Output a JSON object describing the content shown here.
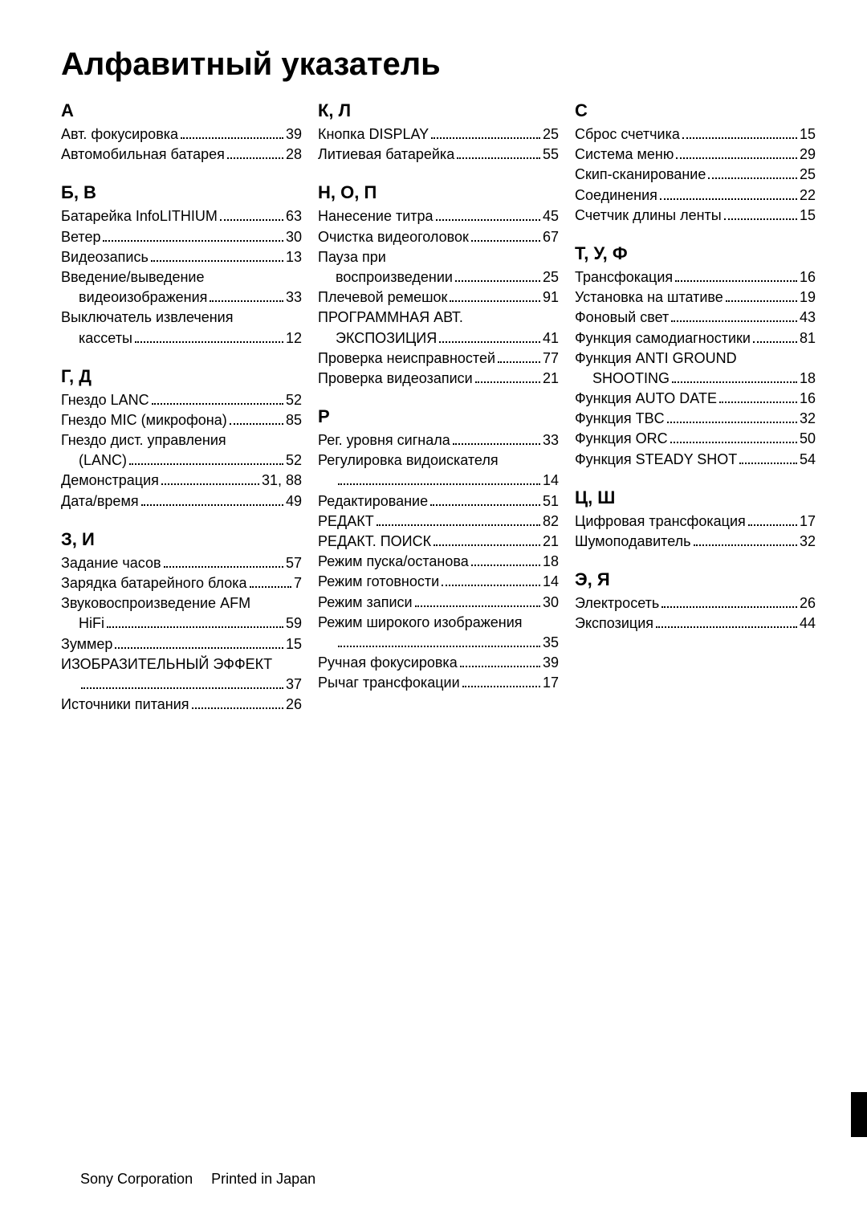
{
  "title": "Алфавитный указатель",
  "footer": {
    "corp": "Sony Corporation",
    "printed": "Printed in Japan"
  },
  "columns": [
    {
      "sections": [
        {
          "heading": "А",
          "entries": [
            {
              "label": "Авт. фокусировка",
              "page": "39"
            },
            {
              "label": "Автомобильная батарея",
              "page": "28"
            }
          ]
        },
        {
          "heading": "Б, В",
          "entries": [
            {
              "label": "Батарейка InfoLITHIUM",
              "page": "63"
            },
            {
              "label": "Ветер",
              "page": "30"
            },
            {
              "label": "Видеозапись",
              "page": "13"
            },
            {
              "label": "Введение/выведение",
              "cont": "видеоизображения",
              "page": "33"
            },
            {
              "label": "Выключатель извлечения",
              "cont": "кассеты",
              "page": "12"
            }
          ]
        },
        {
          "heading": "Г, Д",
          "entries": [
            {
              "label": "Гнездо LANC",
              "page": "52"
            },
            {
              "label": "Гнездо MIC (микрофона)",
              "page": "85"
            },
            {
              "label": "Гнездо дист. управления",
              "cont": "(LANC)",
              "page": "52"
            },
            {
              "label": "Демонстрация",
              "page": "31, 88"
            },
            {
              "label": "Дата/время",
              "page": "49"
            }
          ]
        },
        {
          "heading": "З, И",
          "entries": [
            {
              "label": "Задание часов",
              "page": "57"
            },
            {
              "label": "Зарядка батарейного блока",
              "page": "7"
            },
            {
              "label": "Звуковоспроизведение AFM",
              "cont": "HiFi",
              "page": "59"
            },
            {
              "label": "Зуммер",
              "page": "15"
            },
            {
              "label": "ИЗОБРАЗИТЕЛЬНЫЙ ЭФФЕКТ",
              "cont": "",
              "page": "37"
            },
            {
              "label": "Источники питания",
              "page": "26"
            }
          ]
        }
      ]
    },
    {
      "sections": [
        {
          "heading": "К, Л",
          "entries": [
            {
              "label": "Кнопка DISPLAY",
              "page": "25"
            },
            {
              "label": "Литиевая батарейка",
              "page": "55"
            }
          ]
        },
        {
          "heading": "Н, О, П",
          "entries": [
            {
              "label": "Нанесение титра",
              "page": "45"
            },
            {
              "label": "Очистка видеоголовок",
              "page": "67"
            },
            {
              "label": "Пауза при",
              "cont": "воспроизведении",
              "page": "25"
            },
            {
              "label": "Плечевой ремешок",
              "page": "91"
            },
            {
              "label": "ПРОГРАММНАЯ АВТ.",
              "cont": "ЭКСПОЗИЦИЯ",
              "page": "41"
            },
            {
              "label": "Проверка неисправностей",
              "page": "77"
            },
            {
              "label": "Проверка видеозаписи",
              "page": "21"
            }
          ]
        },
        {
          "heading": "Р",
          "entries": [
            {
              "label": "Рег. уровня сигнала",
              "page": "33"
            },
            {
              "label": "Регулировка видоискателя",
              "cont": "",
              "page": "14"
            },
            {
              "label": "Редактирование",
              "page": "51"
            },
            {
              "label": "РЕДАКТ",
              "page": "82"
            },
            {
              "label": "РЕДАКТ. ПОИСК",
              "page": "21"
            },
            {
              "label": "Режим пуска/останова",
              "page": "18"
            },
            {
              "label": "Режим готовности",
              "page": "14"
            },
            {
              "label": "Режим записи",
              "page": "30"
            },
            {
              "label": "Режим широкого изображения",
              "cont": "",
              "page": "35"
            },
            {
              "label": "Ручная фокусировка",
              "page": "39"
            },
            {
              "label": "Рычаг трансфокации",
              "page": "17"
            }
          ]
        }
      ]
    },
    {
      "sections": [
        {
          "heading": "С",
          "entries": [
            {
              "label": "Сброс счетчика",
              "page": "15"
            },
            {
              "label": "Система меню",
              "page": "29"
            },
            {
              "label": "Скип-сканирование",
              "page": "25"
            },
            {
              "label": "Соединения",
              "page": "22"
            },
            {
              "label": "Счетчик длины ленты",
              "page": "15"
            }
          ]
        },
        {
          "heading": "Т, У, Ф",
          "entries": [
            {
              "label": "Трансфокация",
              "page": "16"
            },
            {
              "label": "Установка на штативе",
              "page": "19"
            },
            {
              "label": "Фоновый свет",
              "page": "43"
            },
            {
              "label": "Функция самодиагностики",
              "page": "81"
            },
            {
              "label": "Функция ANTI GROUND",
              "cont": "SHOOTING",
              "page": "18"
            },
            {
              "label": "Функция AUTO DATE",
              "page": "16"
            },
            {
              "label": "Функция TBC",
              "page": "32"
            },
            {
              "label": "Функция ORC",
              "page": "50"
            },
            {
              "label": "Функция STEADY SHOT",
              "page": "54"
            }
          ]
        },
        {
          "heading": "Ц, Ш",
          "entries": [
            {
              "label": "Цифровая трансфокация",
              "page": "17"
            },
            {
              "label": "Шумоподавитель",
              "page": "32"
            }
          ]
        },
        {
          "heading": "Э, Я",
          "entries": [
            {
              "label": "Электросеть",
              "page": "26"
            },
            {
              "label": "Экспозиция",
              "page": "44"
            }
          ]
        }
      ]
    }
  ]
}
